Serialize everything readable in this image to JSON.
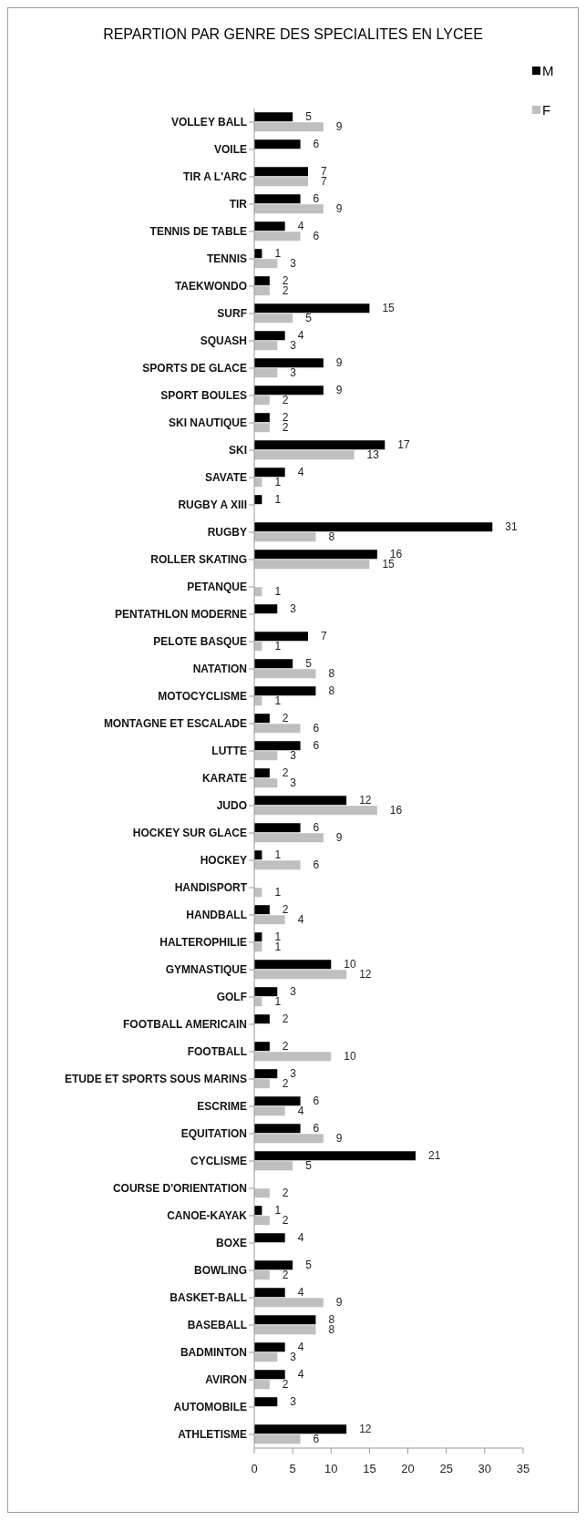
{
  "chart_data": {
    "type": "bar",
    "orientation": "horizontal",
    "title": "REPARTION PAR GENRE DES SPECIALITES EN LYCEE",
    "categories": [
      "VOLLEY BALL",
      "VOILE",
      "TIR A L'ARC",
      "TIR",
      "TENNIS DE TABLE",
      "TENNIS",
      "TAEKWONDO",
      "SURF",
      "SQUASH",
      "SPORTS DE GLACE",
      "SPORT BOULES",
      "SKI NAUTIQUE",
      "SKI",
      "SAVATE",
      "RUGBY A XIII",
      "RUGBY",
      "ROLLER SKATING",
      "PETANQUE",
      "PENTATHLON MODERNE",
      "PELOTE BASQUE",
      "NATATION",
      "MOTOCYCLISME",
      "MONTAGNE ET ESCALADE",
      "LUTTE",
      "KARATE",
      "JUDO",
      "HOCKEY SUR GLACE",
      "HOCKEY",
      "HANDISPORT",
      "HANDBALL",
      "HALTEROPHILIE",
      "GYMNASTIQUE",
      "GOLF",
      "FOOTBALL AMERICAIN",
      "FOOTBALL",
      "ETUDE ET SPORTS SOUS MARINS",
      "ESCRIME",
      "EQUITATION",
      "CYCLISME",
      "COURSE D'ORIENTATION",
      "CANOE-KAYAK",
      "BOXE",
      "BOWLING",
      "BASKET-BALL",
      "BASEBALL",
      "BADMINTON",
      "AVIRON",
      "AUTOMOBILE",
      "ATHLETISME"
    ],
    "series": [
      {
        "name": "M",
        "color": "#000000",
        "values": [
          5,
          6,
          7,
          6,
          4,
          1,
          2,
          15,
          4,
          9,
          9,
          2,
          17,
          4,
          1,
          31,
          16,
          null,
          3,
          7,
          5,
          8,
          2,
          6,
          2,
          12,
          6,
          1,
          null,
          2,
          1,
          10,
          3,
          2,
          2,
          3,
          6,
          6,
          21,
          null,
          1,
          4,
          5,
          4,
          8,
          4,
          4,
          3,
          12
        ]
      },
      {
        "name": "F",
        "color": "#bfbfbf",
        "values": [
          9,
          null,
          7,
          9,
          6,
          3,
          2,
          5,
          3,
          3,
          2,
          2,
          13,
          1,
          null,
          8,
          15,
          1,
          null,
          1,
          8,
          1,
          6,
          3,
          3,
          16,
          9,
          6,
          1,
          4,
          1,
          12,
          1,
          null,
          10,
          2,
          4,
          9,
          5,
          2,
          2,
          null,
          2,
          9,
          8,
          3,
          2,
          null,
          6
        ]
      }
    ],
    "xlim": [
      0,
      35
    ],
    "xticks": [
      0,
      5,
      10,
      15,
      20,
      25,
      30,
      35
    ],
    "data_labels": true,
    "legend": "top right",
    "grid": false
  }
}
